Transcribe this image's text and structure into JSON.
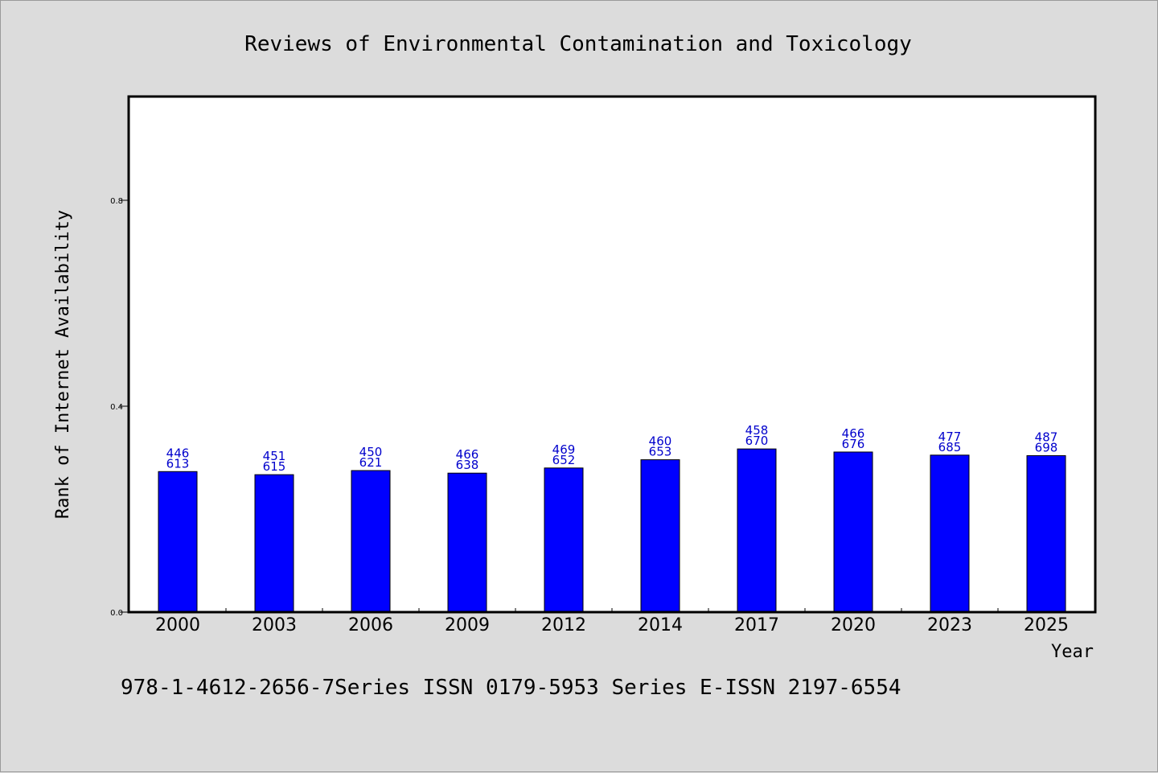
{
  "chart_data": {
    "type": "bar",
    "title": "Reviews of Environmental Contamination and Toxicology",
    "xlabel": "Year",
    "ylabel": "Rank of Internet Availability",
    "categories": [
      "2000",
      "2003",
      "2006",
      "2009",
      "2012",
      "2014",
      "2017",
      "2020",
      "2023",
      "2025"
    ],
    "values": [
      0.273,
      0.267,
      0.275,
      0.27,
      0.28,
      0.296,
      0.317,
      0.311,
      0.305,
      0.304
    ],
    "bar_labels_top": [
      "446",
      "451",
      "450",
      "466",
      "469",
      "460",
      "458",
      "466",
      "477",
      "487"
    ],
    "bar_labels_bottom": [
      "613",
      "615",
      "621",
      "638",
      "652",
      "653",
      "670",
      "676",
      "685",
      "698"
    ],
    "ylim": [
      0,
      1.0
    ],
    "yticks": [
      "0.0",
      "0.4",
      "0.8"
    ],
    "grid": false,
    "bar_color": "#0000ff",
    "label_color": "#0000cc"
  },
  "footer": {
    "text": "978-1-4612-2656-7Series ISSN 0179-5953 Series E-ISSN 2197-6554"
  }
}
